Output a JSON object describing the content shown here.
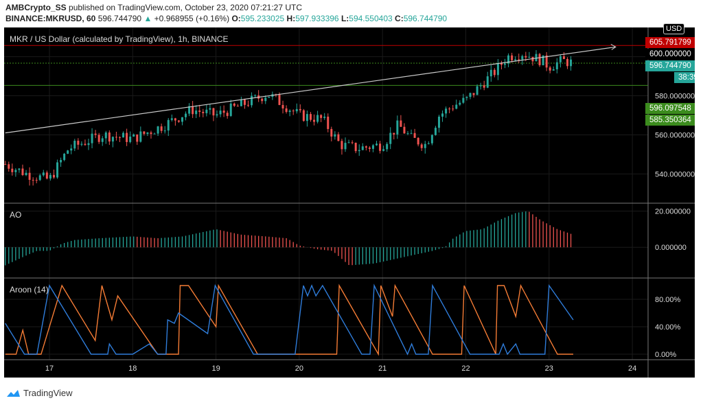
{
  "header": {
    "publisher": "AMBCrypto_SS",
    "published_text": "published on TradingView.com, October 23, 2020 07:21:27 UTC",
    "symbol": "BINANCE:MKRUSD, 60",
    "last": "596.744790",
    "change": "+0.968955 (+0.16%)",
    "o_label": "O:",
    "o": "595.233025",
    "h_label": "H:",
    "h": "597.933396",
    "l_label": "L:",
    "l": "594.550403",
    "c_label": "C:",
    "c": "596.744790"
  },
  "main_title": "MKR / US Dollar (calculated by TradingView), 1h, BINANCE",
  "currency": "USD",
  "price_labels": [
    {
      "text": "605.791799",
      "color": "#c00000"
    },
    {
      "text": "600.000000",
      "color": "#000000"
    },
    {
      "text": "596.744790",
      "color": "#26a69a"
    },
    {
      "text": "38:39",
      "color": "#26a69a"
    },
    {
      "text": "596.097548",
      "color": "#3c8c1e"
    },
    {
      "text": "585.350364",
      "color": "#3c8c1e"
    }
  ],
  "ao_title": "AO",
  "aroon_title": "Aroon (14)",
  "logo": "TradingView",
  "colors": {
    "up": "#26a69a",
    "down": "#ef5350",
    "ao_up": "#26a69a",
    "ao_down": "#ef5350",
    "aroon_up": "#f57c35",
    "aroon_down": "#2f7ddb"
  },
  "chart_data": [
    {
      "type": "candlestick",
      "title": "MKR / US Dollar (calculated by TradingView), 1h, BINANCE",
      "x_ticks": [
        "17",
        "18",
        "19",
        "20",
        "21",
        "22",
        "23",
        "24"
      ],
      "y_ticks": [
        "540.000000",
        "560.000000",
        "580.000000",
        "600.000000"
      ],
      "ylim": [
        525,
        615
      ],
      "close_points": [
        [
          16.47,
          545
        ],
        [
          16.73,
          540
        ],
        [
          17.0,
          537
        ],
        [
          17.23,
          553
        ],
        [
          17.64,
          560
        ],
        [
          18.0,
          558
        ],
        [
          18.38,
          565
        ],
        [
          18.71,
          573
        ],
        [
          19.0,
          570
        ],
        [
          19.29,
          575
        ],
        [
          19.62,
          581
        ],
        [
          19.83,
          575
        ],
        [
          20.0,
          570
        ],
        [
          20.28,
          568
        ],
        [
          20.49,
          555
        ],
        [
          20.7,
          553
        ],
        [
          21.0,
          555
        ],
        [
          21.19,
          565
        ],
        [
          21.35,
          558
        ],
        [
          21.52,
          555
        ],
        [
          21.68,
          570
        ],
        [
          21.85,
          575
        ],
        [
          22.01,
          578
        ],
        [
          22.17,
          585
        ],
        [
          22.34,
          592
        ],
        [
          22.5,
          600
        ],
        [
          22.67,
          602
        ],
        [
          22.92,
          598
        ],
        [
          23.0,
          595
        ],
        [
          23.16,
          598
        ],
        [
          23.29,
          596.74
        ]
      ],
      "trendline": [
        [
          16.47,
          561
        ],
        [
          23.8,
          605
        ]
      ],
      "hlines": [
        605.79,
        596.74,
        585.35
      ]
    },
    {
      "type": "bar",
      "title": "AO",
      "y_ticks": [
        "0.000000",
        "20.000000"
      ],
      "ylim": [
        -17,
        24
      ],
      "points": [
        [
          16.47,
          -10
        ],
        [
          16.7,
          -5
        ],
        [
          16.85,
          -2
        ],
        [
          17.0,
          -2
        ],
        [
          17.15,
          2
        ],
        [
          17.3,
          4
        ],
        [
          17.6,
          5
        ],
        [
          18.0,
          6
        ],
        [
          18.3,
          5
        ],
        [
          18.6,
          6
        ],
        [
          18.8,
          8
        ],
        [
          19.0,
          10
        ],
        [
          19.3,
          7
        ],
        [
          19.6,
          6
        ],
        [
          19.85,
          5
        ],
        [
          20.0,
          1
        ],
        [
          20.2,
          -1
        ],
        [
          20.4,
          -2
        ],
        [
          20.6,
          -10
        ],
        [
          20.9,
          -9
        ],
        [
          21.2,
          -6
        ],
        [
          21.4,
          -4
        ],
        [
          21.6,
          -2
        ],
        [
          21.75,
          0
        ],
        [
          21.85,
          5
        ],
        [
          22.0,
          9
        ],
        [
          22.2,
          10
        ],
        [
          22.4,
          15
        ],
        [
          22.6,
          19
        ],
        [
          22.75,
          20
        ],
        [
          22.9,
          15
        ],
        [
          23.1,
          10
        ],
        [
          23.29,
          7
        ]
      ]
    },
    {
      "type": "line",
      "title": "Aroon (14)",
      "y_ticks": [
        "0.00%",
        "40.00%",
        "80.00%"
      ],
      "ylim": [
        -8,
        110
      ],
      "series": [
        {
          "key": "up",
          "points": [
            [
              16.47,
              0
            ],
            [
              16.6,
              0
            ],
            [
              16.68,
              35
            ],
            [
              16.75,
              0
            ],
            [
              16.9,
              0
            ],
            [
              17.15,
              100
            ],
            [
              17.55,
              20
            ],
            [
              17.63,
              100
            ],
            [
              17.75,
              50
            ],
            [
              17.82,
              85
            ],
            [
              18.3,
              0
            ],
            [
              18.55,
              0
            ],
            [
              18.57,
              100
            ],
            [
              18.67,
              100
            ],
            [
              19.0,
              40
            ],
            [
              19.03,
              100
            ],
            [
              19.5,
              0
            ],
            [
              20.45,
              0
            ],
            [
              20.48,
              100
            ],
            [
              20.95,
              0
            ],
            [
              20.98,
              100
            ],
            [
              21.12,
              55
            ],
            [
              21.15,
              100
            ],
            [
              21.6,
              0
            ],
            [
              21.95,
              0
            ],
            [
              21.98,
              100
            ],
            [
              22.36,
              0
            ],
            [
              22.38,
              100
            ],
            [
              22.46,
              100
            ],
            [
              22.6,
              55
            ],
            [
              22.66,
              100
            ],
            [
              23.1,
              0
            ],
            [
              23.29,
              0
            ]
          ]
        },
        {
          "key": "down",
          "points": [
            [
              16.47,
              45
            ],
            [
              16.7,
              0
            ],
            [
              16.85,
              0
            ],
            [
              17.0,
              100
            ],
            [
              17.5,
              0
            ],
            [
              17.7,
              0
            ],
            [
              17.72,
              15
            ],
            [
              17.8,
              0
            ],
            [
              18.0,
              0
            ],
            [
              18.2,
              15
            ],
            [
              18.3,
              0
            ],
            [
              18.4,
              0
            ],
            [
              18.42,
              50
            ],
            [
              18.5,
              45
            ],
            [
              18.55,
              60
            ],
            [
              18.9,
              30
            ],
            [
              18.99,
              100
            ],
            [
              19.45,
              0
            ],
            [
              19.95,
              0
            ],
            [
              20.05,
              100
            ],
            [
              20.1,
              85
            ],
            [
              20.15,
              100
            ],
            [
              20.2,
              85
            ],
            [
              20.28,
              100
            ],
            [
              20.75,
              0
            ],
            [
              20.85,
              0
            ],
            [
              20.9,
              100
            ],
            [
              21.3,
              0
            ],
            [
              21.35,
              15
            ],
            [
              21.4,
              0
            ],
            [
              21.55,
              0
            ],
            [
              21.6,
              100
            ],
            [
              22.05,
              0
            ],
            [
              22.4,
              0
            ],
            [
              22.45,
              15
            ],
            [
              22.5,
              0
            ],
            [
              22.6,
              15
            ],
            [
              22.65,
              0
            ],
            [
              22.95,
              0
            ],
            [
              23.0,
              100
            ],
            [
              23.29,
              50
            ]
          ]
        }
      ]
    }
  ]
}
